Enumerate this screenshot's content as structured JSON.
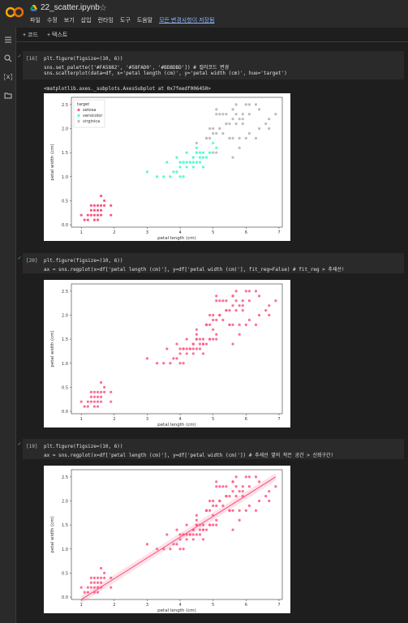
{
  "header": {
    "filename": "22_scatter.ipynb",
    "menu": [
      "파일",
      "수정",
      "보기",
      "삽입",
      "런타임",
      "도구",
      "도움말"
    ],
    "saved_status": "모든 변경사항이 저장됨"
  },
  "toolbar": {
    "code_label": "+ 코드",
    "text_label": "+ 텍스트"
  },
  "cells": [
    {
      "count": "[16]",
      "lines": [
        "plt.figure(figsize=(10, 6))",
        "sns.set_palette(['#FA5882', '#58FAD0', '#BDBDBD']) # 컬러코드 변경",
        "sns.scatterplot(data=df, x='petal length (cm)', y='petal width (cm)', hue='target')"
      ],
      "output_text": "<matplotlib.axes._subplots.AxesSubplot at 0x7feedf006450>"
    },
    {
      "count": "[20]",
      "lines": [
        "plt.figure(figsize=(10, 6))",
        "ax = sns.regplot(x=df['petal length (cm)'], y=df['petal width (cm)'], fit_reg=False) # fit_reg > 추세선!"
      ]
    },
    {
      "count": "[19]",
      "lines": [
        "plt.figure(figsize=(10, 6))",
        "ax = sns.regplot(x=df['petal length (cm)'], y=df['petal width (cm)']) # 추세선 옆의 작은 공간 > 신뢰구간!"
      ]
    }
  ],
  "chart_data": [
    {
      "type": "scatter",
      "xlabel": "petal length (cm)",
      "ylabel": "petal width (cm)",
      "xlim": [
        0.7,
        7.1
      ],
      "ylim": [
        -0.05,
        2.65
      ],
      "xticks": [
        "1",
        "2",
        "3",
        "4",
        "5",
        "6",
        "7"
      ],
      "yticks": [
        "0.0",
        "0.5",
        "1.0",
        "1.5",
        "2.0",
        "2.5"
      ],
      "legend": {
        "title": "target",
        "placement": "upper-left",
        "entries": [
          "setosa",
          "versicolor",
          "virginica"
        ]
      },
      "colors": [
        "#FA5882",
        "#58FAD0",
        "#BDBDBD"
      ],
      "series": [
        {
          "name": "setosa",
          "points": [
            [
              1.4,
              0.2
            ],
            [
              1.3,
              0.2
            ],
            [
              1.5,
              0.2
            ],
            [
              1.4,
              0.4
            ],
            [
              1.7,
              0.4
            ],
            [
              1.4,
              0.3
            ],
            [
              1.5,
              0.1
            ],
            [
              1.6,
              0.2
            ],
            [
              1.1,
              0.1
            ],
            [
              1.2,
              0.2
            ],
            [
              1.3,
              0.4
            ],
            [
              1.0,
              0.2
            ],
            [
              1.7,
              0.5
            ],
            [
              1.9,
              0.2
            ],
            [
              1.6,
              0.4
            ],
            [
              1.5,
              0.4
            ],
            [
              1.6,
              0.6
            ],
            [
              1.9,
              0.4
            ],
            [
              1.3,
              0.3
            ],
            [
              1.5,
              0.3
            ],
            [
              1.2,
              0.1
            ],
            [
              1.4,
              0.1
            ],
            [
              1.6,
              0.3
            ]
          ]
        },
        {
          "name": "versicolor",
          "points": [
            [
              4.7,
              1.4
            ],
            [
              4.5,
              1.5
            ],
            [
              4.9,
              1.5
            ],
            [
              4.0,
              1.3
            ],
            [
              4.6,
              1.5
            ],
            [
              3.3,
              1.0
            ],
            [
              4.6,
              1.3
            ],
            [
              3.9,
              1.4
            ],
            [
              3.5,
              1.0
            ],
            [
              4.2,
              1.5
            ],
            [
              4.0,
              1.0
            ],
            [
              4.7,
              1.4
            ],
            [
              3.6,
              1.3
            ],
            [
              4.4,
              1.4
            ],
            [
              4.1,
              1.0
            ],
            [
              4.5,
              1.5
            ],
            [
              3.9,
              1.1
            ],
            [
              4.8,
              1.8
            ],
            [
              4.9,
              1.5
            ],
            [
              4.7,
              1.2
            ],
            [
              4.3,
              1.3
            ],
            [
              4.4,
              1.4
            ],
            [
              5.0,
              1.7
            ],
            [
              3.8,
              1.1
            ],
            [
              3.7,
              1.0
            ],
            [
              5.1,
              1.6
            ],
            [
              4.5,
              1.6
            ],
            [
              4.7,
              1.5
            ],
            [
              4.4,
              1.3
            ],
            [
              4.1,
              1.3
            ],
            [
              4.0,
              1.2
            ],
            [
              4.2,
              1.2
            ],
            [
              3.0,
              1.1
            ],
            [
              4.1,
              1.3
            ],
            [
              4.2,
              1.3
            ],
            [
              4.3,
              1.3
            ],
            [
              4.8,
              1.4
            ],
            [
              4.5,
              1.3
            ],
            [
              4.6,
              1.4
            ],
            [
              4.4,
              1.2
            ]
          ]
        },
        {
          "name": "virginica",
          "points": [
            [
              6.0,
              2.5
            ],
            [
              5.1,
              1.9
            ],
            [
              5.9,
              2.1
            ],
            [
              5.6,
              1.8
            ],
            [
              5.8,
              2.2
            ],
            [
              6.6,
              2.1
            ],
            [
              4.5,
              1.7
            ],
            [
              6.3,
              1.8
            ],
            [
              6.1,
              2.5
            ],
            [
              5.3,
              1.9
            ],
            [
              5.5,
              2.1
            ],
            [
              5.0,
              2.0
            ],
            [
              5.1,
              2.4
            ],
            [
              5.3,
              2.3
            ],
            [
              5.5,
              1.8
            ],
            [
              6.7,
              2.2
            ],
            [
              6.9,
              2.3
            ],
            [
              5.0,
              1.5
            ],
            [
              5.7,
              2.3
            ],
            [
              4.9,
              2.0
            ],
            [
              6.7,
              2.0
            ],
            [
              4.9,
              1.8
            ],
            [
              5.7,
              2.1
            ],
            [
              6.0,
              1.8
            ],
            [
              4.8,
              1.8
            ],
            [
              5.8,
              1.6
            ],
            [
              6.1,
              1.9
            ],
            [
              6.4,
              2.0
            ],
            [
              5.6,
              2.2
            ],
            [
              5.1,
              1.5
            ],
            [
              5.6,
              1.4
            ],
            [
              6.1,
              2.3
            ],
            [
              5.6,
              2.4
            ],
            [
              5.5,
              1.8
            ],
            [
              4.8,
              1.8
            ],
            [
              5.4,
              2.1
            ],
            [
              5.6,
              2.4
            ],
            [
              5.1,
              2.3
            ],
            [
              5.9,
              2.3
            ],
            [
              5.7,
              2.5
            ],
            [
              5.2,
              2.3
            ],
            [
              5.0,
              1.9
            ],
            [
              5.2,
              2.0
            ],
            [
              5.4,
              2.3
            ],
            [
              6.4,
              2.4
            ],
            [
              5.8,
              1.8
            ],
            [
              5.4,
              2.1
            ],
            [
              6.3,
              2.5
            ],
            [
              5.9,
              2.2
            ],
            [
              5.2,
              2.0
            ]
          ]
        }
      ]
    },
    {
      "type": "scatter",
      "xlabel": "petal length (cm)",
      "ylabel": "petal width (cm)",
      "xlim": [
        0.7,
        7.1
      ],
      "ylim": [
        -0.05,
        2.65
      ],
      "xticks": [
        "1",
        "2",
        "3",
        "4",
        "5",
        "6",
        "7"
      ],
      "yticks": [
        "0.0",
        "0.5",
        "1.0",
        "1.5",
        "2.0",
        "2.5"
      ],
      "colors": [
        "#FA5882"
      ],
      "regression": false
    },
    {
      "type": "scatter",
      "xlabel": "petal length (cm)",
      "ylabel": "petal width (cm)",
      "xlim": [
        0.7,
        7.1
      ],
      "ylim": [
        -0.05,
        2.65
      ],
      "xticks": [
        "1",
        "2",
        "3",
        "4",
        "5",
        "6",
        "7"
      ],
      "yticks": [
        "0.0",
        "0.5",
        "1.0",
        "1.5",
        "2.0",
        "2.5"
      ],
      "colors": [
        "#FA5882"
      ],
      "regression": true,
      "regression_line": [
        [
          1.0,
          -0.05
        ],
        [
          6.9,
          2.5
        ]
      ]
    }
  ]
}
